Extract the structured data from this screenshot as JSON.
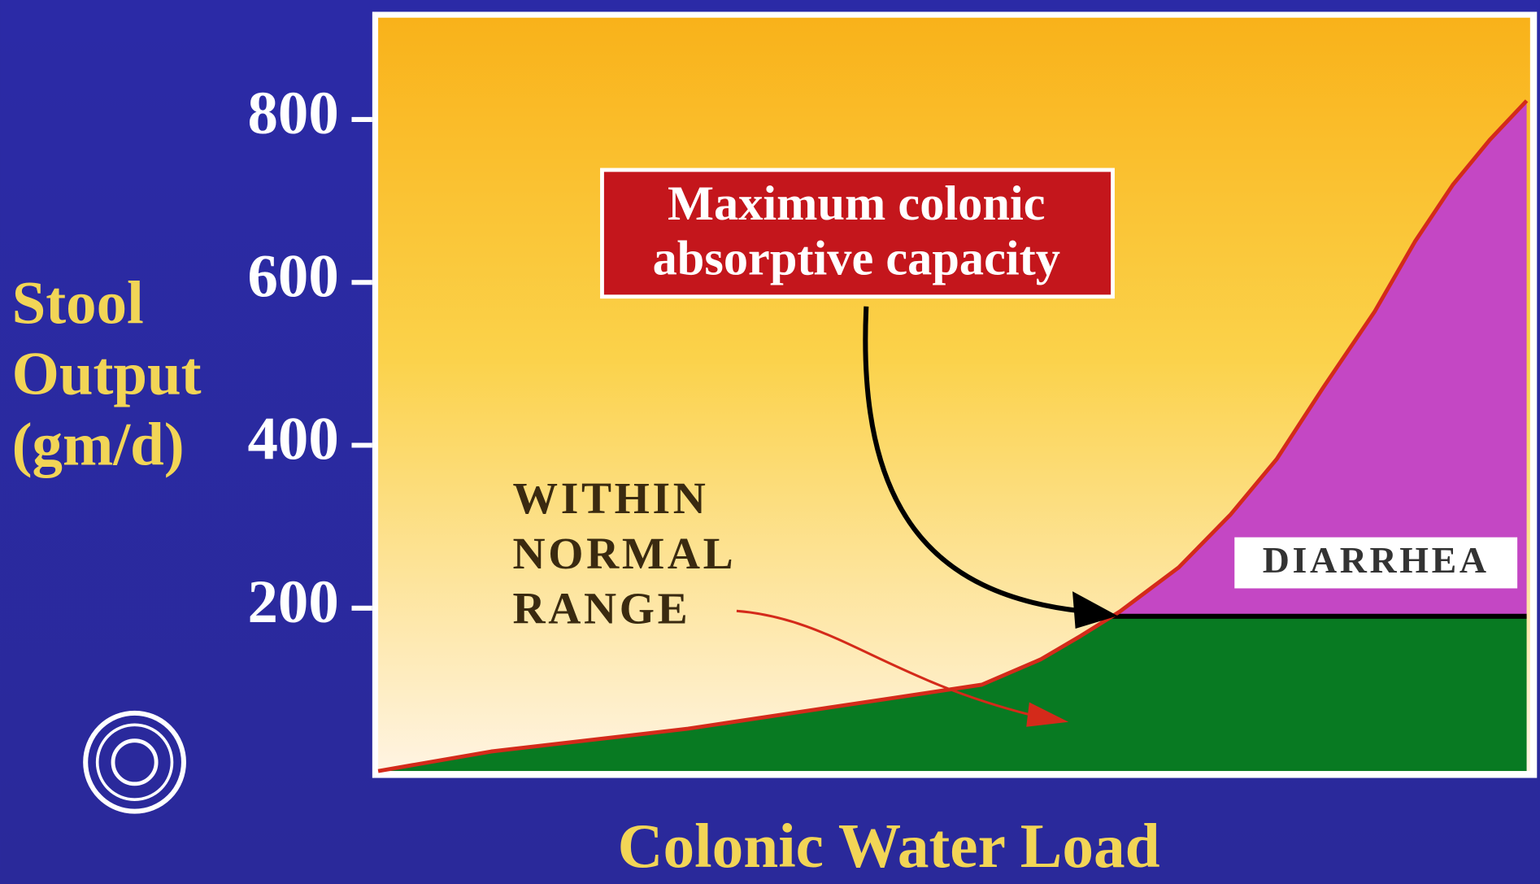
{
  "chart_data": {
    "type": "area",
    "xlabel": "Colonic Water Load",
    "ylabel": [
      "Stool",
      "Output",
      "(gm/d)"
    ],
    "annotation_box": [
      "Maximum colonic",
      "absorptive capacity"
    ],
    "normal_label": [
      "WITHIN",
      "NORMAL",
      "RANGE"
    ],
    "region_label": "DIARRHEA",
    "x": [
      0,
      9.8,
      26.9,
      43.9,
      52.4,
      57.5,
      61,
      64.4,
      69.5,
      74,
      78,
      82,
      86.5,
      90,
      93.3,
      96.5,
      99.7
    ],
    "values": [
      0,
      24,
      52,
      88,
      106,
      137,
      166,
      196,
      250,
      315,
      383,
      470,
      564,
      650,
      720,
      775,
      823
    ],
    "threshold": 190,
    "xlim": [
      0,
      100
    ],
    "ylim": [
      0,
      925
    ],
    "yticks": [
      200,
      400,
      600,
      800
    ],
    "color": "#d42a1a",
    "below_color": "#087a22",
    "above_color": "#c447c4",
    "threshold_color": "#000000"
  }
}
